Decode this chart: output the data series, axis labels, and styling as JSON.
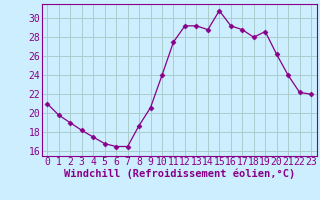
{
  "x": [
    0,
    1,
    2,
    3,
    4,
    5,
    6,
    7,
    8,
    9,
    10,
    11,
    12,
    13,
    14,
    15,
    16,
    17,
    18,
    19,
    20,
    21,
    22,
    23
  ],
  "y": [
    21.0,
    19.8,
    19.0,
    18.2,
    17.5,
    16.8,
    16.5,
    16.5,
    18.7,
    20.6,
    24.0,
    27.5,
    29.2,
    29.2,
    28.8,
    30.8,
    29.2,
    28.8,
    28.0,
    28.6,
    26.2,
    24.0,
    22.2,
    22.0
  ],
  "line_color": "#880088",
  "marker": "D",
  "marker_size": 2.5,
  "bg_color": "#cceeff",
  "grid_color": "#aacccc",
  "xlabel": "Windchill (Refroidissement éolien,°C)",
  "xlabel_fontsize": 7.5,
  "tick_fontsize": 7,
  "ylim": [
    15.5,
    31.5
  ],
  "yticks": [
    16,
    18,
    20,
    22,
    24,
    26,
    28,
    30
  ],
  "xlim": [
    -0.5,
    23.5
  ],
  "xticks": [
    0,
    1,
    2,
    3,
    4,
    5,
    6,
    7,
    8,
    9,
    10,
    11,
    12,
    13,
    14,
    15,
    16,
    17,
    18,
    19,
    20,
    21,
    22,
    23
  ]
}
